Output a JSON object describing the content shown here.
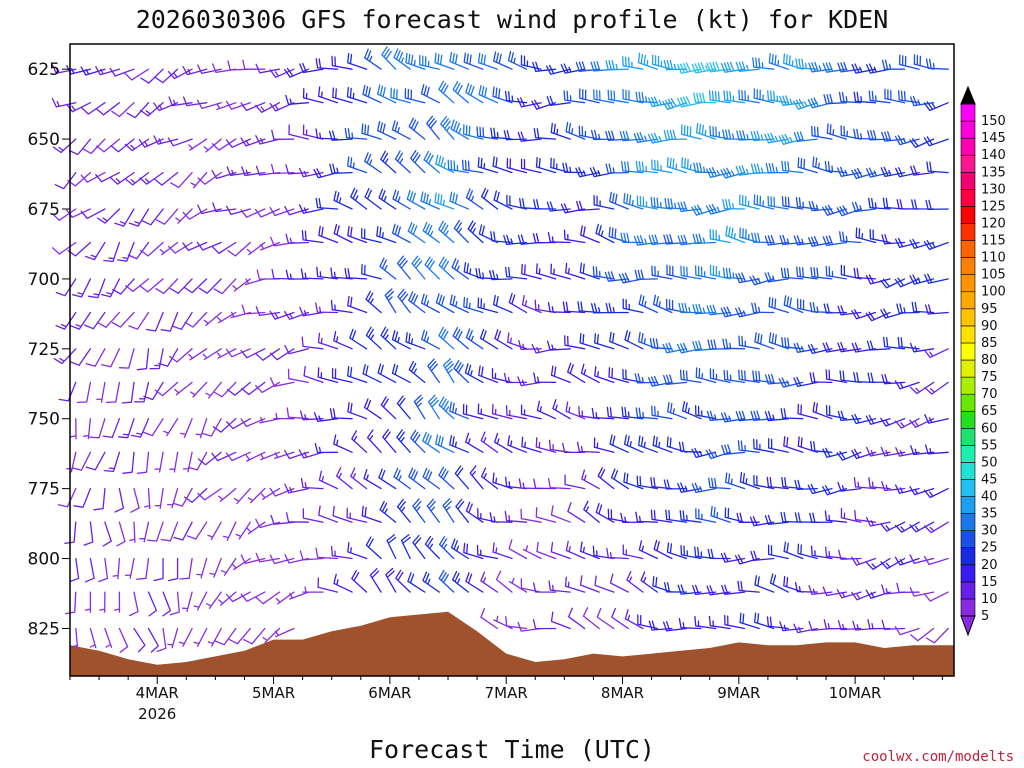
{
  "chart_data": {
    "type": "wind-barb-time-height",
    "title": "2026030306 GFS forecast wind profile (kt) for KDEN",
    "xlabel": "Forecast Time (UTC)",
    "ylabel": "",
    "credit": "coolwx.com/modelts",
    "y_axis": {
      "units": "hPa",
      "inverted": true,
      "range": [
        616,
        842
      ],
      "ticks": [
        625,
        650,
        675,
        700,
        725,
        750,
        775,
        800,
        825
      ]
    },
    "x_axis": {
      "range_days": [
        0,
        7.6
      ],
      "ticks": [
        {
          "t": 0.75,
          "label": "4MAR",
          "sublabel": "2026"
        },
        {
          "t": 1.75,
          "label": "5MAR",
          "sublabel": ""
        },
        {
          "t": 2.75,
          "label": "6MAR",
          "sublabel": ""
        },
        {
          "t": 3.75,
          "label": "7MAR",
          "sublabel": ""
        },
        {
          "t": 4.75,
          "label": "8MAR",
          "sublabel": ""
        },
        {
          "t": 5.75,
          "label": "9MAR",
          "sublabel": ""
        },
        {
          "t": 6.75,
          "label": "10MAR",
          "sublabel": ""
        }
      ]
    },
    "colorbar": {
      "levels": [
        5,
        10,
        15,
        20,
        25,
        30,
        35,
        40,
        45,
        50,
        55,
        60,
        65,
        70,
        75,
        80,
        85,
        90,
        95,
        100,
        105,
        110,
        115,
        120,
        125,
        130,
        135,
        140,
        145,
        150
      ],
      "colors": [
        "#8a2be2",
        "#6a1fe8",
        "#3a19f0",
        "#1a2ae0",
        "#1a50e8",
        "#1a78ec",
        "#1e9ff0",
        "#22c0f0",
        "#22e0d8",
        "#1cf0b0",
        "#20e070",
        "#22e020",
        "#66e800",
        "#a8f000",
        "#e0f000",
        "#ffff00",
        "#ffe000",
        "#ffc400",
        "#ffa800",
        "#ff9400",
        "#ff8000",
        "#ff6400",
        "#ff3000",
        "#ff0000",
        "#ff0044",
        "#f00070",
        "#ff1493",
        "#ff00b0",
        "#ff00dd",
        "#ff00ff"
      ]
    },
    "terrain_color": "#a0522d",
    "terrain": {
      "t": [
        0.0,
        0.25,
        0.5,
        0.75,
        1.0,
        1.25,
        1.5,
        1.75,
        2.0,
        2.25,
        2.5,
        2.75,
        3.0,
        3.25,
        3.5,
        3.75,
        4.0,
        4.25,
        4.5,
        4.75,
        5.0,
        5.25,
        5.5,
        5.75,
        6.0,
        6.25,
        6.5,
        6.75,
        7.0,
        7.25,
        7.6
      ],
      "p": [
        831,
        833,
        836,
        838,
        837,
        835,
        833,
        829,
        829,
        826,
        824,
        821,
        820,
        819,
        826,
        834,
        837,
        836,
        834,
        835,
        834,
        833,
        832,
        830,
        831,
        831,
        830,
        830,
        832,
        831,
        831
      ]
    },
    "barb_levels_hpa": [
      625,
      637,
      650,
      662,
      675,
      687,
      700,
      712,
      725,
      737,
      750,
      762,
      775,
      787,
      800,
      812,
      825
    ],
    "time_step_days": 0.125,
    "series": [
      {
        "name": "wind_direction_deg",
        "t_days": [
          0.0,
          0.6,
          1.2,
          1.9,
          2.5,
          2.8,
          3.3,
          3.6,
          4.1,
          4.5,
          5.0,
          5.6,
          6.3,
          6.9,
          7.6
        ],
        "low_levels": [
          170,
          160,
          200,
          250,
          300,
          320,
          320,
          300,
          280,
          300,
          290,
          270,
          280,
          260,
          240
        ],
        "high_levels": [
          250,
          240,
          250,
          260,
          280,
          300,
          300,
          290,
          270,
          270,
          270,
          270,
          270,
          270,
          265
        ]
      },
      {
        "name": "wind_speed_kt",
        "t_days": [
          0.0,
          0.6,
          1.2,
          1.9,
          2.5,
          2.8,
          3.3,
          3.6,
          4.1,
          4.5,
          5.0,
          5.6,
          6.3,
          6.9,
          7.6
        ],
        "low_levels": [
          8,
          9,
          6,
          6,
          14,
          18,
          28,
          12,
          8,
          10,
          15,
          20,
          17,
          12,
          10
        ],
        "high_levels": [
          12,
          13,
          10,
          12,
          24,
          28,
          35,
          30,
          22,
          25,
          38,
          40,
          35,
          28,
          25
        ]
      }
    ]
  }
}
